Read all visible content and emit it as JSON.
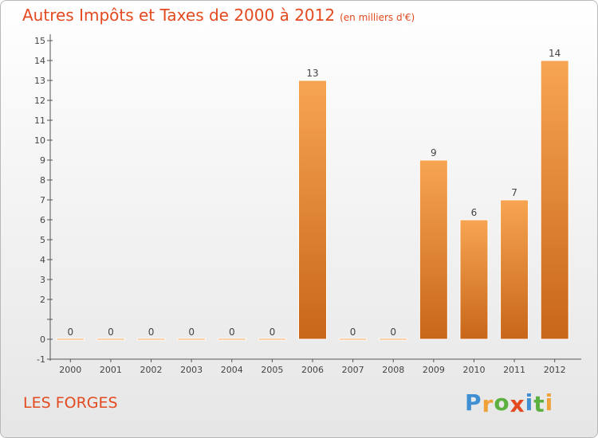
{
  "header": {
    "title": "Autres Impôts et Taxes de 2000 à 2012",
    "subtitle": "(en milliers d'€)"
  },
  "footer": {
    "commune": "LES FORGES",
    "logo_letters": [
      {
        "ch": "P",
        "color": "#3f8fd2"
      },
      {
        "ch": "r",
        "color": "#f0a23a"
      },
      {
        "ch": "o",
        "color": "#5bb040"
      },
      {
        "ch": "x",
        "color": "#e34a1f"
      },
      {
        "ch": "i",
        "color": "#3f8fd2"
      },
      {
        "ch": "t",
        "color": "#5bb040"
      },
      {
        "ch": "i",
        "color": "#f0a23a"
      }
    ]
  },
  "chart_data": {
    "type": "bar",
    "title": "Autres Impôts et Taxes de 2000 à 2012",
    "subtitle": "(en milliers d'€)",
    "categories": [
      "2000",
      "2001",
      "2002",
      "2003",
      "2004",
      "2005",
      "2006",
      "2007",
      "2008",
      "2009",
      "2010",
      "2011",
      "2012"
    ],
    "values": [
      0,
      0,
      0,
      0,
      0,
      0,
      13,
      0,
      0,
      9,
      6,
      7,
      14
    ],
    "value_labels": [
      "0",
      "0",
      "0",
      "0",
      "0",
      "0",
      "13",
      "0",
      "0",
      "9",
      "6",
      "7",
      "14"
    ],
    "ylim": [
      -1,
      15
    ],
    "y_ticks": [
      -1,
      0,
      1,
      2,
      3,
      4,
      5,
      6,
      7,
      8,
      9,
      10,
      11,
      12,
      13,
      14,
      15
    ],
    "y_tick_labels": [
      "-1",
      "0",
      "",
      "2",
      "3",
      "4",
      "5",
      "6",
      "7",
      "8",
      "9",
      "10",
      "11",
      "12",
      "13",
      "14",
      "15"
    ],
    "xlabel": "",
    "ylabel": "",
    "grid": false,
    "bar_color_top": "#f7a552",
    "bar_color_bottom": "#c8661a",
    "bar_edge_color": "#ffffff"
  }
}
